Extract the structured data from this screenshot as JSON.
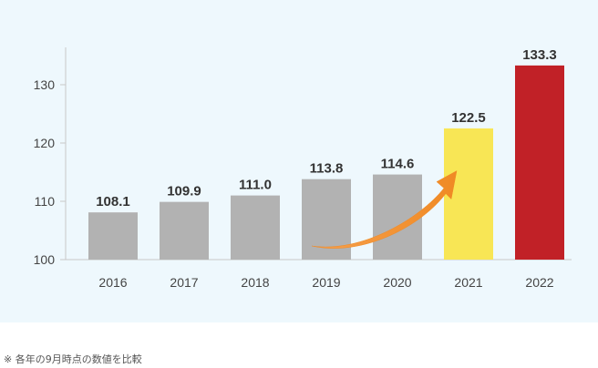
{
  "chart_data": {
    "type": "bar",
    "categories": [
      "2016",
      "2017",
      "2018",
      "2019",
      "2020",
      "2021",
      "2022"
    ],
    "values": [
      108.1,
      109.9,
      111.0,
      113.8,
      114.6,
      122.5,
      133.3
    ],
    "value_labels": [
      "108.1",
      "109.9",
      "111.0",
      "113.8",
      "114.6",
      "122.5",
      "133.3"
    ],
    "y_ticks": [
      100,
      110,
      120,
      130
    ],
    "ylim": [
      100,
      137
    ],
    "grid": false,
    "bar_colors": [
      "#b2b2b2",
      "#b2b2b2",
      "#b2b2b2",
      "#b2b2b2",
      "#b2b2b2",
      "#f8e655",
      "#c12127"
    ],
    "annotation": {
      "type": "arrow",
      "from_category": "2019",
      "to_category": "2021",
      "color": "#f08a24"
    }
  },
  "footnote": "※ 各年の9月時点の数値を比較"
}
